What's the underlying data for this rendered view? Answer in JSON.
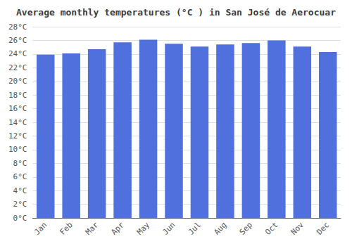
{
  "chart_data": {
    "type": "bar",
    "title": "Average monthly temperatures (°C ) in San José de Aerocuar",
    "categories": [
      "Jan",
      "Feb",
      "Mar",
      "Apr",
      "May",
      "Jun",
      "Jul",
      "Aug",
      "Sep",
      "Oct",
      "Nov",
      "Dec"
    ],
    "values": [
      23.9,
      24.1,
      24.7,
      25.7,
      26.1,
      25.5,
      25.1,
      25.4,
      25.6,
      26.0,
      25.1,
      24.3
    ],
    "ylim": [
      0,
      28
    ],
    "yticks": [
      {
        "value": 0,
        "label": "0°C"
      },
      {
        "value": 2,
        "label": "2°C"
      },
      {
        "value": 4,
        "label": "4°C"
      },
      {
        "value": 6,
        "label": "6°C"
      },
      {
        "value": 8,
        "label": "8°C"
      },
      {
        "value": 10,
        "label": "10°C"
      },
      {
        "value": 12,
        "label": "12°C"
      },
      {
        "value": 14,
        "label": "14°C"
      },
      {
        "value": 16,
        "label": "16°C"
      },
      {
        "value": 18,
        "label": "18°C"
      },
      {
        "value": 20,
        "label": "20°C"
      },
      {
        "value": 22,
        "label": "22°C"
      },
      {
        "value": 24,
        "label": "24°C"
      },
      {
        "value": 26,
        "label": "26°C"
      },
      {
        "value": 28,
        "label": "28°C"
      }
    ],
    "grid": true
  }
}
